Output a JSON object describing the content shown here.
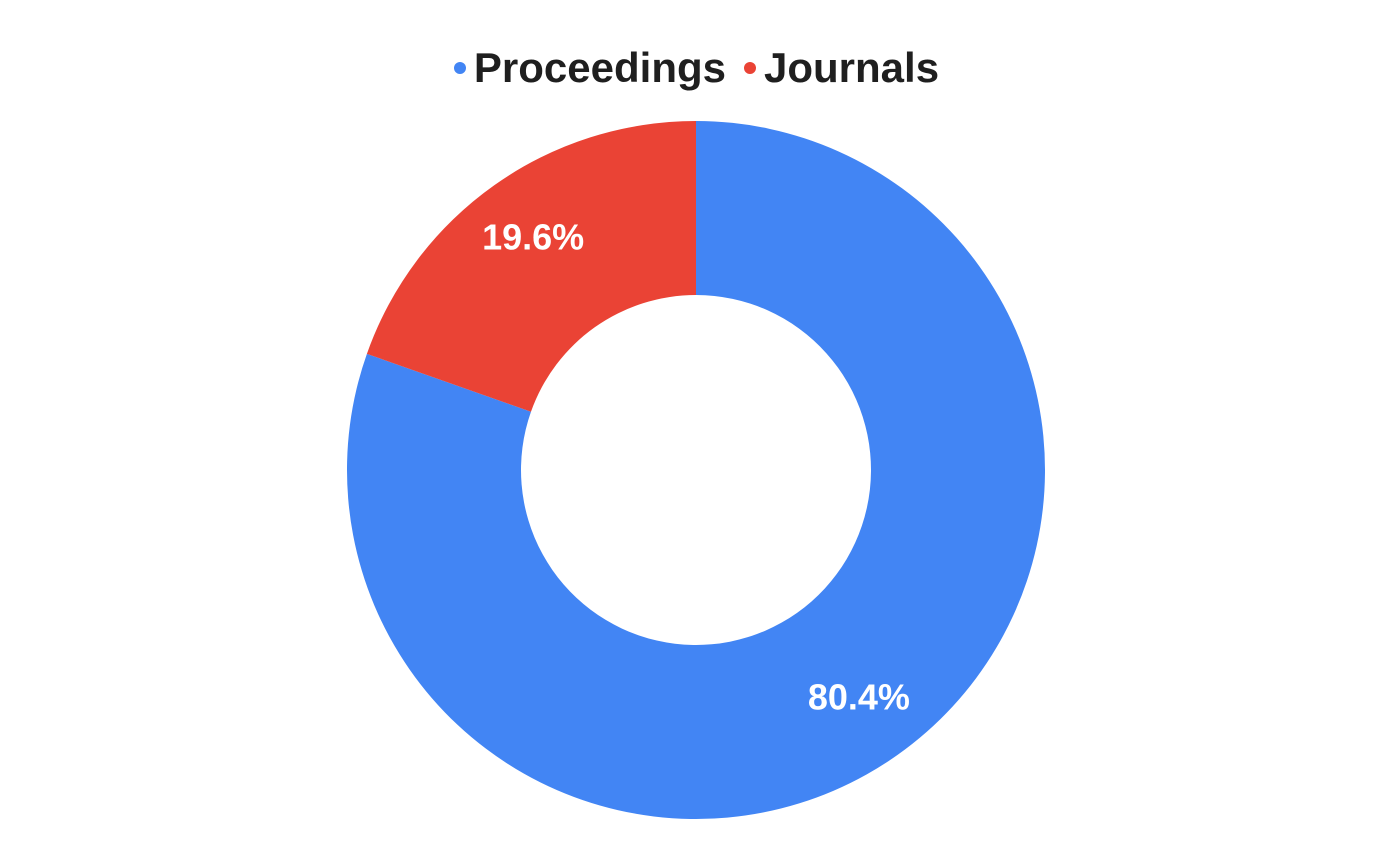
{
  "chart_data": {
    "type": "pie",
    "variant": "donut",
    "legend_position": "top",
    "categories": [
      "Proceedings",
      "Journals"
    ],
    "values": [
      80.4,
      19.6
    ],
    "value_labels": [
      "80.4%",
      "19.6%"
    ],
    "colors": [
      "#4285f4",
      "#ea4335"
    ]
  },
  "legend": {
    "items": [
      {
        "label": "Proceedings",
        "color": "#4285f4"
      },
      {
        "label": "Journals",
        "color": "#ea4335"
      }
    ]
  }
}
